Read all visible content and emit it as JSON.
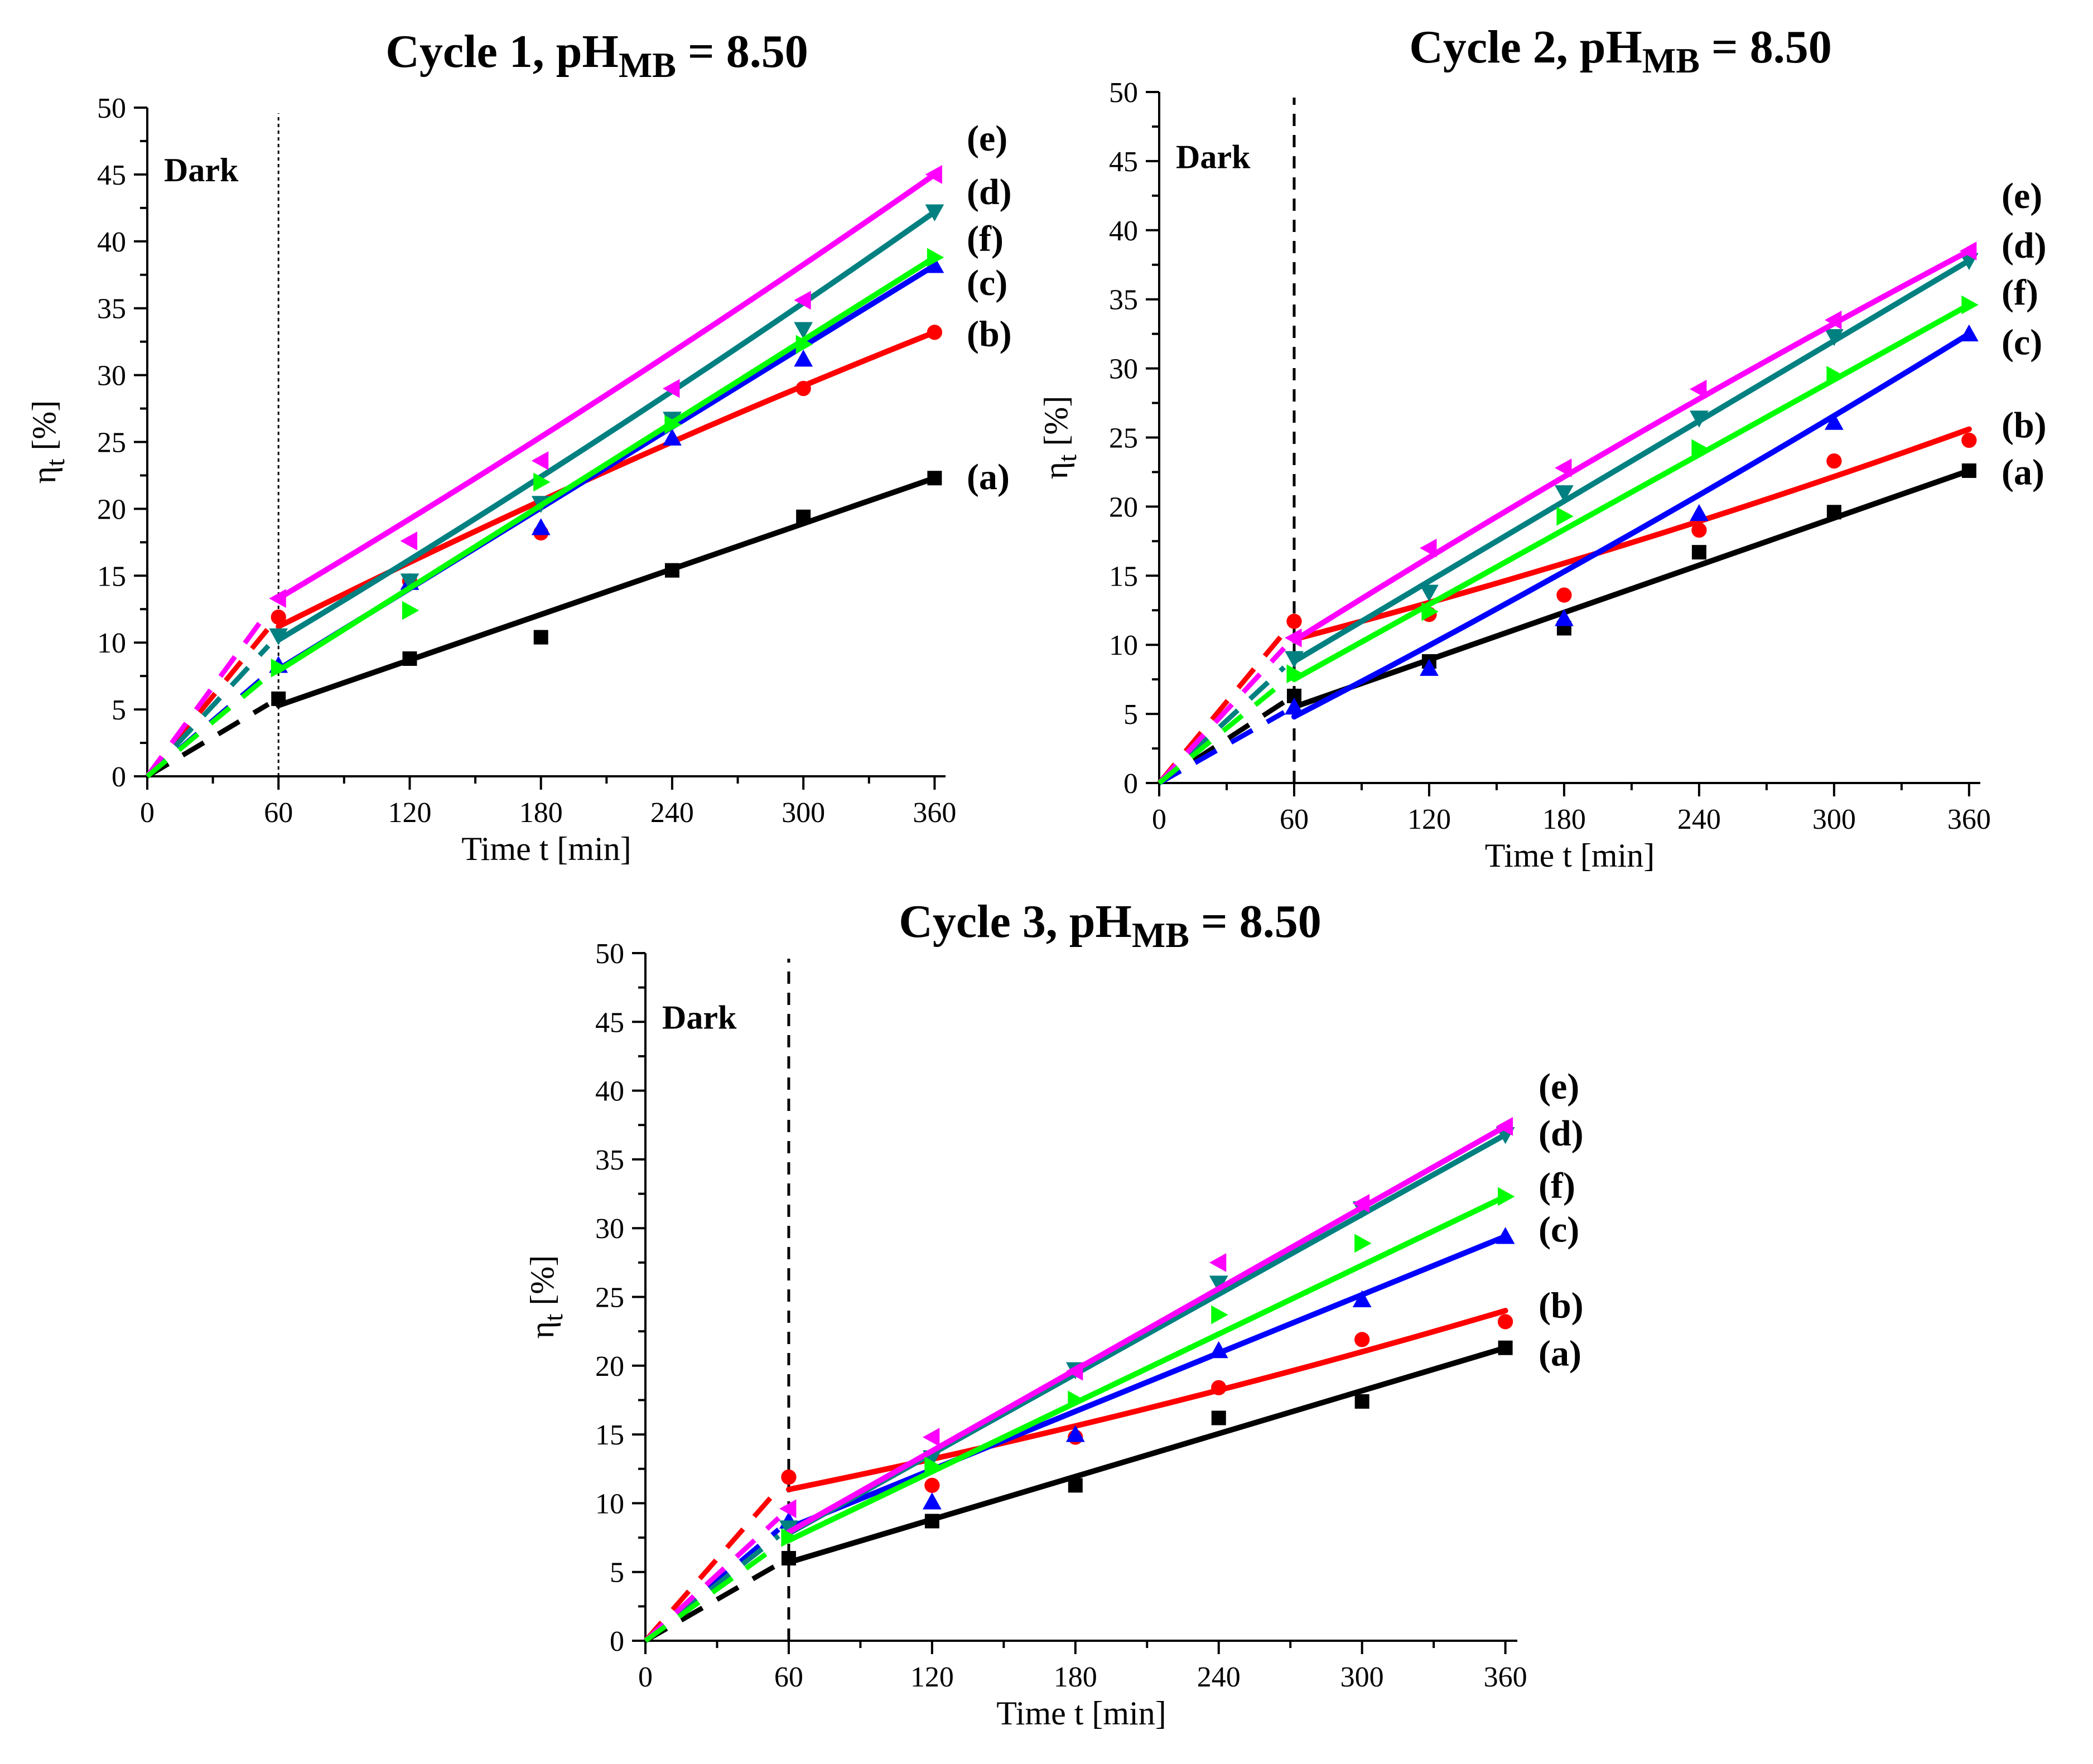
{
  "colors": {
    "a": "#000000",
    "b": "#ff0000",
    "c": "#0000ff",
    "d": "#008080",
    "e": "#ff00ff",
    "f": "#00ff00"
  },
  "chart_data": [
    {
      "type": "line",
      "title": "Cycle 1, pH",
      "title_sub": "MB",
      "title_suffix": " = 8.50",
      "xlabel": "Time t [min]",
      "ylabel": "η",
      "ylabel_sub": "t",
      "ylabel_unit": " [%]",
      "xlim": [
        0,
        365
      ],
      "ylim": [
        0,
        50
      ],
      "xticks": [
        0,
        60,
        120,
        180,
        240,
        300,
        360
      ],
      "yticks": [
        0,
        5,
        10,
        15,
        20,
        25,
        30,
        35,
        40,
        45,
        50
      ],
      "dark_label": "Dark",
      "dark_line_x": 60,
      "dark_line_style": "dotted",
      "x": [
        60,
        120,
        180,
        240,
        300,
        360
      ],
      "series": [
        {
          "key": "a",
          "name": "(a)",
          "marker": "square",
          "values": [
            5.8,
            8.8,
            10.4,
            15.4,
            19.4,
            22.3
          ],
          "fit": [
            [
              60,
              5.3
            ],
            [
              360,
              22.3
            ]
          ],
          "fit_shape": "linear",
          "dark": [
            [
              0,
              0
            ],
            [
              60,
              5.8
            ]
          ]
        },
        {
          "key": "b",
          "name": "(b)",
          "marker": "circle",
          "values": [
            11.9,
            14.6,
            18.2,
            26.6,
            29.0,
            33.2
          ],
          "fit": [
            [
              60,
              11.2
            ],
            [
              360,
              33.2
            ]
          ],
          "fit_shape": "concave",
          "dark": [
            [
              0,
              0
            ],
            [
              60,
              11.9
            ]
          ]
        },
        {
          "key": "c",
          "name": "(c)",
          "marker": "triangle-up",
          "values": [
            8.3,
            14.5,
            18.6,
            25.3,
            31.2,
            38.2
          ],
          "fit": [
            [
              60,
              8.0
            ],
            [
              360,
              38.2
            ]
          ],
          "fit_shape": "linear",
          "dark": [
            [
              0,
              0
            ],
            [
              60,
              8.3
            ]
          ]
        },
        {
          "key": "d",
          "name": "(d)",
          "marker": "triangle-down",
          "values": [
            10.5,
            14.6,
            20.4,
            26.7,
            33.4,
            42.2
          ],
          "fit": [
            [
              60,
              10.2
            ],
            [
              360,
              42.2
            ]
          ],
          "fit_shape": "convex",
          "dark": [
            [
              0,
              0
            ],
            [
              60,
              10.5
            ]
          ]
        },
        {
          "key": "e",
          "name": "(e)",
          "marker": "triangle-left",
          "values": [
            13.3,
            17.6,
            23.6,
            29.0,
            35.6,
            45.0
          ],
          "fit": [
            [
              60,
              13.3
            ],
            [
              360,
              45.0
            ]
          ],
          "fit_shape": "convex",
          "dark": [
            [
              0,
              0
            ],
            [
              60,
              13.3
            ]
          ]
        },
        {
          "key": "f",
          "name": "(f)",
          "marker": "triangle-right",
          "values": [
            8.1,
            12.4,
            22.0,
            26.3,
            32.3,
            38.8
          ],
          "fit": [
            [
              60,
              7.9
            ],
            [
              360,
              38.8
            ]
          ],
          "fit_shape": "linear",
          "dark": [
            [
              0,
              0
            ],
            [
              60,
              8.1
            ]
          ]
        }
      ],
      "label_order": [
        "e",
        "d",
        "f",
        "c",
        "b",
        "a"
      ],
      "label_values": [
        47.7,
        43.7,
        40.2,
        36.9,
        33.1,
        22.4
      ]
    },
    {
      "type": "line",
      "title": "Cycle 2, pH",
      "title_sub": "MB",
      "title_suffix": " = 8.50",
      "xlabel": "Time t [min]",
      "ylabel": "η",
      "ylabel_sub": "t",
      "ylabel_unit": " [%]",
      "xlim": [
        0,
        365
      ],
      "ylim": [
        0,
        50
      ],
      "xticks": [
        0,
        60,
        120,
        180,
        240,
        300,
        360
      ],
      "yticks": [
        0,
        5,
        10,
        15,
        20,
        25,
        30,
        35,
        40,
        45,
        50
      ],
      "dark_label": "Dark",
      "dark_line_x": 60,
      "dark_line_style": "dashed",
      "x": [
        60,
        120,
        180,
        240,
        300,
        360
      ],
      "series": [
        {
          "key": "a",
          "name": "(a)",
          "marker": "square",
          "values": [
            6.3,
            8.8,
            11.2,
            16.7,
            19.6,
            22.6
          ],
          "fit": [
            [
              60,
              5.5
            ],
            [
              360,
              22.6
            ]
          ],
          "fit_shape": "linear",
          "dark": [
            [
              0,
              0
            ],
            [
              60,
              6.3
            ]
          ]
        },
        {
          "key": "b",
          "name": "(b)",
          "marker": "circle",
          "values": [
            11.7,
            12.2,
            13.6,
            18.3,
            23.3,
            24.8
          ],
          "fit": [
            [
              60,
              10.4
            ],
            [
              360,
              25.6
            ]
          ],
          "fit_shape": "convex",
          "dark": [
            [
              0,
              0
            ],
            [
              60,
              11.7
            ]
          ]
        },
        {
          "key": "c",
          "name": "(c)",
          "marker": "triangle-up",
          "values": [
            5.5,
            8.3,
            11.9,
            19.5,
            26.1,
            32.5
          ],
          "fit": [
            [
              60,
              4.8
            ],
            [
              360,
              32.5
            ]
          ],
          "fit_shape": "convex",
          "dark": [
            [
              0,
              0
            ],
            [
              60,
              5.5
            ]
          ]
        },
        {
          "key": "d",
          "name": "(d)",
          "marker": "triangle-down",
          "values": [
            9.0,
            13.8,
            21.0,
            26.4,
            32.3,
            37.8
          ],
          "fit": [
            [
              60,
              8.8
            ],
            [
              360,
              37.8
            ]
          ],
          "fit_shape": "linear",
          "dark": [
            [
              0,
              0
            ],
            [
              60,
              9.0
            ]
          ]
        },
        {
          "key": "e",
          "name": "(e)",
          "marker": "triangle-left",
          "values": [
            10.5,
            17.0,
            22.8,
            28.5,
            33.5,
            38.5
          ],
          "fit": [
            [
              60,
              10.3
            ],
            [
              360,
              38.5
            ]
          ],
          "fit_shape": "concave",
          "dark": [
            [
              0,
              0
            ],
            [
              60,
              10.5
            ]
          ]
        },
        {
          "key": "f",
          "name": "(f)",
          "marker": "triangle-right",
          "values": [
            7.9,
            12.4,
            19.3,
            24.2,
            29.5,
            34.6
          ],
          "fit": [
            [
              60,
              7.5
            ],
            [
              360,
              34.6
            ]
          ],
          "fit_shape": "linear",
          "dark": [
            [
              0,
              0
            ],
            [
              60,
              7.9
            ]
          ]
        }
      ],
      "label_order": [
        "e",
        "d",
        "f",
        "c",
        "b",
        "a"
      ],
      "label_values": [
        42.5,
        38.9,
        35.5,
        31.9,
        25.9,
        22.5
      ]
    },
    {
      "type": "line",
      "title": "Cycle 3, pH",
      "title_sub": "MB",
      "title_suffix": " = 8.50",
      "xlabel": "Time t [min]",
      "ylabel": "η",
      "ylabel_sub": "t",
      "ylabel_unit": " [%]",
      "xlim": [
        0,
        365
      ],
      "ylim": [
        0,
        50
      ],
      "xticks": [
        0,
        60,
        120,
        180,
        240,
        300,
        360
      ],
      "yticks": [
        0,
        5,
        10,
        15,
        20,
        25,
        30,
        35,
        40,
        45,
        50
      ],
      "dark_label": "Dark",
      "dark_line_x": 60,
      "dark_line_style": "dashed",
      "x": [
        60,
        120,
        180,
        240,
        300,
        360
      ],
      "series": [
        {
          "key": "a",
          "name": "(a)",
          "marker": "square",
          "values": [
            6.0,
            8.7,
            11.3,
            16.2,
            17.4,
            21.3
          ],
          "fit": [
            [
              60,
              5.7
            ],
            [
              360,
              21.3
            ]
          ],
          "fit_shape": "linear",
          "dark": [
            [
              0,
              0
            ],
            [
              60,
              6.0
            ]
          ]
        },
        {
          "key": "b",
          "name": "(b)",
          "marker": "circle",
          "values": [
            11.9,
            11.3,
            14.8,
            18.4,
            21.9,
            23.2
          ],
          "fit": [
            [
              60,
              11.0
            ],
            [
              360,
              24.0
            ]
          ],
          "fit_shape": "convex",
          "dark": [
            [
              0,
              0
            ],
            [
              60,
              11.9
            ]
          ]
        },
        {
          "key": "c",
          "name": "(c)",
          "marker": "triangle-up",
          "values": [
            8.7,
            10.1,
            15.0,
            21.1,
            24.8,
            29.4
          ],
          "fit": [
            [
              60,
              8.2
            ],
            [
              360,
              29.4
            ]
          ],
          "fit_shape": "linear",
          "dark": [
            [
              0,
              0
            ],
            [
              60,
              8.7
            ]
          ]
        },
        {
          "key": "d",
          "name": "(d)",
          "marker": "triangle-down",
          "values": [
            8.2,
            13.3,
            19.7,
            26.0,
            31.4,
            36.8
          ],
          "fit": [
            [
              60,
              7.8
            ],
            [
              360,
              36.8
            ]
          ],
          "fit_shape": "linear",
          "dark": [
            [
              0,
              0
            ],
            [
              60,
              8.2
            ]
          ]
        },
        {
          "key": "e",
          "name": "(e)",
          "marker": "triangle-left",
          "values": [
            9.6,
            14.8,
            19.6,
            27.5,
            31.8,
            37.4
          ],
          "fit": [
            [
              60,
              7.9
            ],
            [
              360,
              37.4
            ]
          ],
          "fit_shape": "linear",
          "dark": [
            [
              0,
              0
            ],
            [
              60,
              9.6
            ]
          ]
        },
        {
          "key": "f",
          "name": "(f)",
          "marker": "triangle-right",
          "values": [
            7.5,
            12.7,
            17.5,
            23.7,
            28.9,
            32.3
          ],
          "fit": [
            [
              60,
              7.3
            ],
            [
              360,
              32.3
            ]
          ],
          "fit_shape": "linear",
          "dark": [
            [
              0,
              0
            ],
            [
              60,
              7.5
            ]
          ]
        }
      ],
      "label_order": [
        "e",
        "d",
        "f",
        "c",
        "b",
        "a"
      ],
      "label_values": [
        40.3,
        36.9,
        33.1,
        29.9,
        24.4,
        20.9
      ]
    }
  ]
}
